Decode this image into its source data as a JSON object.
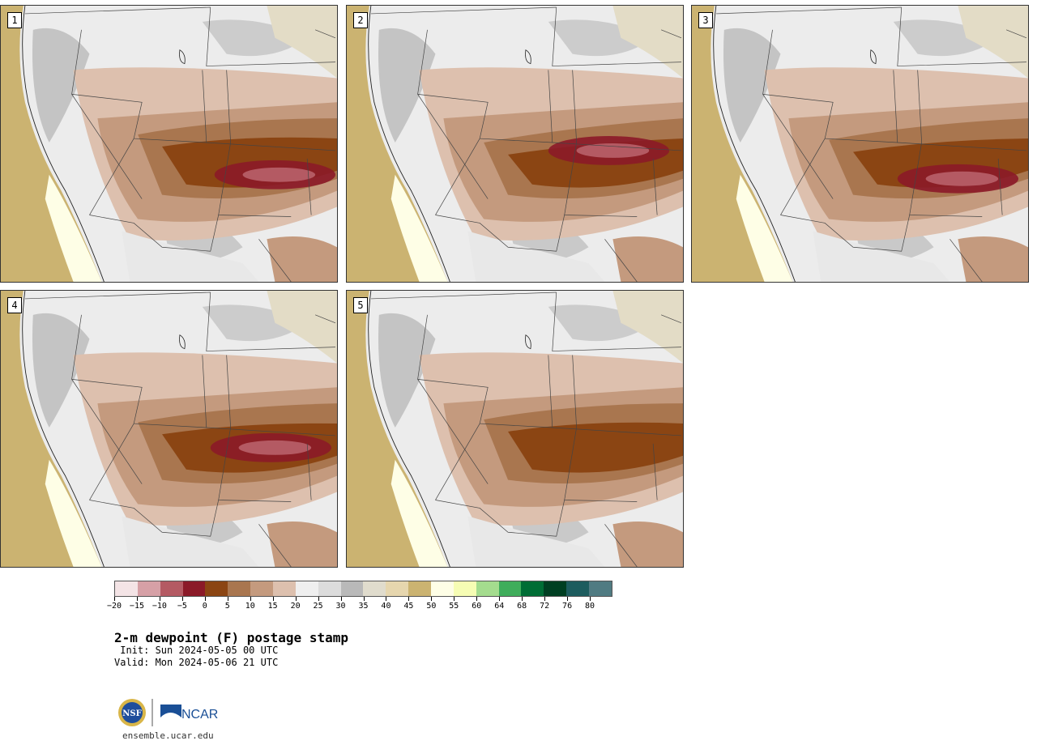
{
  "panels": [
    {
      "label": "1",
      "variant": 1
    },
    {
      "label": "2",
      "variant": 2
    },
    {
      "label": "3",
      "variant": 3
    },
    {
      "label": "4",
      "variant": 4
    },
    {
      "label": "5",
      "variant": 5
    }
  ],
  "colorbar": {
    "colors": [
      "#f4e4e6",
      "#d6a0a6",
      "#b45a63",
      "#8b1a28",
      "#8b4513",
      "#a9764f",
      "#c49a7e",
      "#ddc0ae",
      "#efefef",
      "#dcdcdc",
      "#b9b9b9",
      "#e0dccd",
      "#e6d6ae",
      "#cbb371",
      "#fefee6",
      "#f6fdb4",
      "#a4dc8e",
      "#3fad5b",
      "#006d35",
      "#003f22",
      "#1d5c5e",
      "#507b82"
    ],
    "tick_labels": [
      "−20",
      "−15",
      "−10",
      "−5",
      "0",
      "5",
      "10",
      "15",
      "20",
      "25",
      "30",
      "35",
      "40",
      "45",
      "50",
      "55",
      "60",
      "64",
      "68",
      "72",
      "76",
      "80"
    ]
  },
  "title": "2-m dewpoint (F) postage stamp",
  "init": " Init: Sun 2024-05-05 00 UTC",
  "valid": "Valid: Mon 2024-05-06 21 UTC",
  "logos": {
    "nsf": "NSF",
    "ncar": "NCAR"
  },
  "site": "ensemble.ucar.edu"
}
